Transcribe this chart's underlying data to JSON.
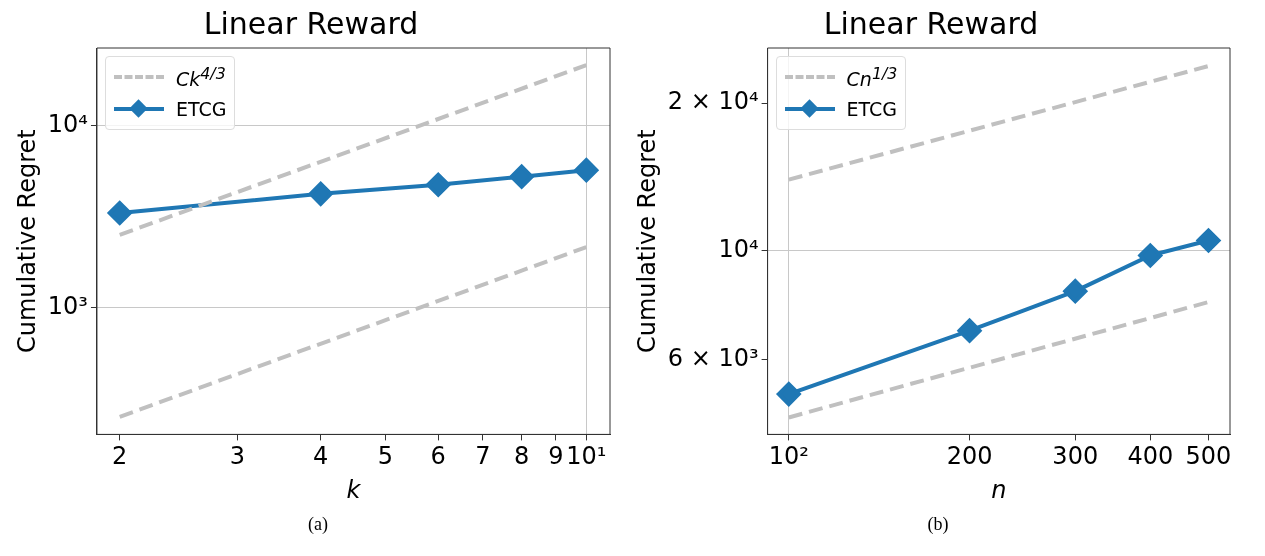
{
  "chart_data": [
    {
      "type": "line",
      "title": "Linear Reward",
      "xlabel": "k",
      "ylabel": "Cumulative Regret",
      "log": "xy",
      "grid": true,
      "legend": "top left",
      "annotations": [
        "(a)"
      ],
      "x": [
        2,
        4,
        6,
        8,
        10
      ],
      "xlim": [
        1.849,
        10.85
      ],
      "xticks": [
        2,
        3,
        4,
        5,
        6,
        7,
        8,
        9,
        {
          "value": 10,
          "label": "10¹"
        }
      ],
      "ylim": [
        201,
        26700
      ],
      "yticks": [
        {
          "value": 1000,
          "label": "10³"
        },
        {
          "value": 10000,
          "label": "10⁴"
        }
      ],
      "series": [
        {
          "name": "Ck$^{4/3}$",
          "color": "#c0c0c0",
          "line_style": "dashed",
          "marker": "none",
          "x": [
            2,
            10
          ],
          "values": [
            2510,
            21500
          ]
        },
        {
          "color": "#c0c0c0",
          "line_style": "dashed",
          "marker": "none",
          "x": [
            2,
            10
          ],
          "values": [
            251,
            2150
          ]
        },
        {
          "name": "ETCG",
          "color": "#1f77b4",
          "line_style": "solid",
          "marker": "diamond",
          "values": [
            3310,
            4220,
            4730,
            5240,
            5690
          ]
        }
      ]
    },
    {
      "type": "line",
      "title": "Linear Reward",
      "xlabel": "n",
      "ylabel": "Cumulative Regret",
      "log": "xy",
      "grid": true,
      "legend": "top left",
      "annotations": [
        "(b)"
      ],
      "x": [
        100,
        200,
        300,
        400,
        500
      ],
      "xlim": [
        92.2,
        543
      ],
      "xticks": [
        {
          "value": 100,
          "label": "10²"
        },
        200,
        300,
        400,
        500
      ],
      "ylim": [
        4230,
        25900
      ],
      "yticks": [
        {
          "value": 6000,
          "label": "6 × 10³"
        },
        {
          "value": 10000,
          "label": "10⁴"
        },
        {
          "value": 20000,
          "label": "2 × 10⁴"
        }
      ],
      "series": [
        {
          "name": "Cn$^{1/3}$",
          "color": "#c0c0c0",
          "line_style": "dashed",
          "marker": "none",
          "x": [
            100,
            500
          ],
          "values": [
            13970,
            23800
          ]
        },
        {
          "color": "#c0c0c0",
          "line_style": "dashed",
          "marker": "none",
          "x": [
            100,
            500
          ],
          "values": [
            4580,
            7870
          ]
        },
        {
          "name": "ETCG",
          "color": "#1f77b4",
          "line_style": "solid",
          "marker": "diamond",
          "values": [
            5110,
            6880,
            8280,
            9790,
            10500
          ]
        }
      ]
    }
  ]
}
